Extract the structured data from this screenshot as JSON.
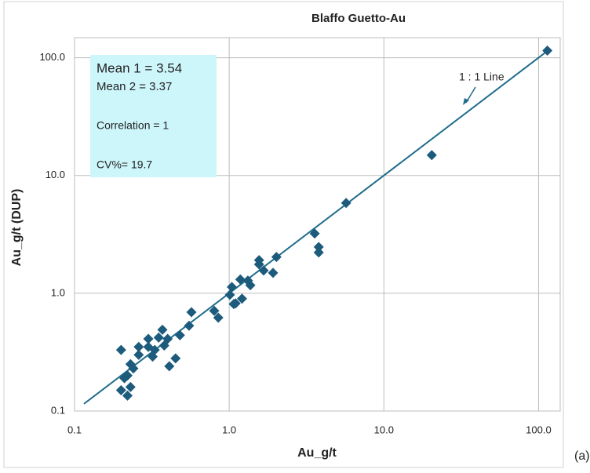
{
  "chart_data": {
    "type": "scatter",
    "title": "Blaffo Guetto-Au",
    "x_label": "Au_g/t",
    "y_label": "Au_g/t (DUP)",
    "log_x": true,
    "log_y": true,
    "grid": true,
    "color": "#1d5b7c",
    "line_color": "#1f6c8c",
    "identity_line": true,
    "line_label": "1 : 1 Line",
    "stats": [
      "Mean 1 = 3.54",
      "Mean 2 = 3.37",
      "Correlation = 1",
      "CV%= 19.7"
    ],
    "panel_label": "(a)",
    "xlim": [
      0.1,
      138
    ],
    "ylim": [
      0.1,
      148
    ],
    "xticks": [
      0.1,
      {
        "value": 1,
        "label": "1.0"
      },
      {
        "value": 10,
        "label": "10.0"
      },
      {
        "value": 100,
        "label": "100.0"
      }
    ],
    "yticks": [
      0.1,
      {
        "value": 1,
        "label": "1.0"
      },
      {
        "value": 10,
        "label": "10.0"
      },
      {
        "value": 100,
        "label": "100.0"
      }
    ],
    "x": [
      114,
      20.4,
      5.7,
      3.57,
      3.79,
      3.79,
      2.02,
      1.56,
      1.56,
      1.67,
      1.92,
      1.32,
      1.37,
      1.04,
      1.18,
      1.01,
      1.1,
      1.07,
      1.21,
      0.8,
      0.85,
      0.57,
      0.55,
      0.48,
      0.45,
      0.41,
      0.38,
      0.4,
      0.37,
      0.35,
      0.33,
      0.3,
      0.32,
      0.3,
      0.26,
      0.26,
      0.23,
      0.24,
      0.22,
      0.23,
      0.21,
      0.2,
      0.22,
      0.2
    ],
    "values": [
      115,
      14.9,
      5.84,
      3.21,
      2.47,
      2.22,
      2.03,
      1.91,
      1.76,
      1.56,
      1.49,
      1.28,
      1.17,
      1.13,
      1.31,
      0.97,
      0.82,
      0.81,
      0.9,
      0.71,
      0.62,
      0.69,
      0.53,
      0.44,
      0.28,
      0.24,
      0.36,
      0.41,
      0.49,
      0.42,
      0.33,
      0.35,
      0.29,
      0.41,
      0.3,
      0.35,
      0.25,
      0.23,
      0.2,
      0.16,
      0.19,
      0.15,
      0.135,
      0.33
    ]
  }
}
